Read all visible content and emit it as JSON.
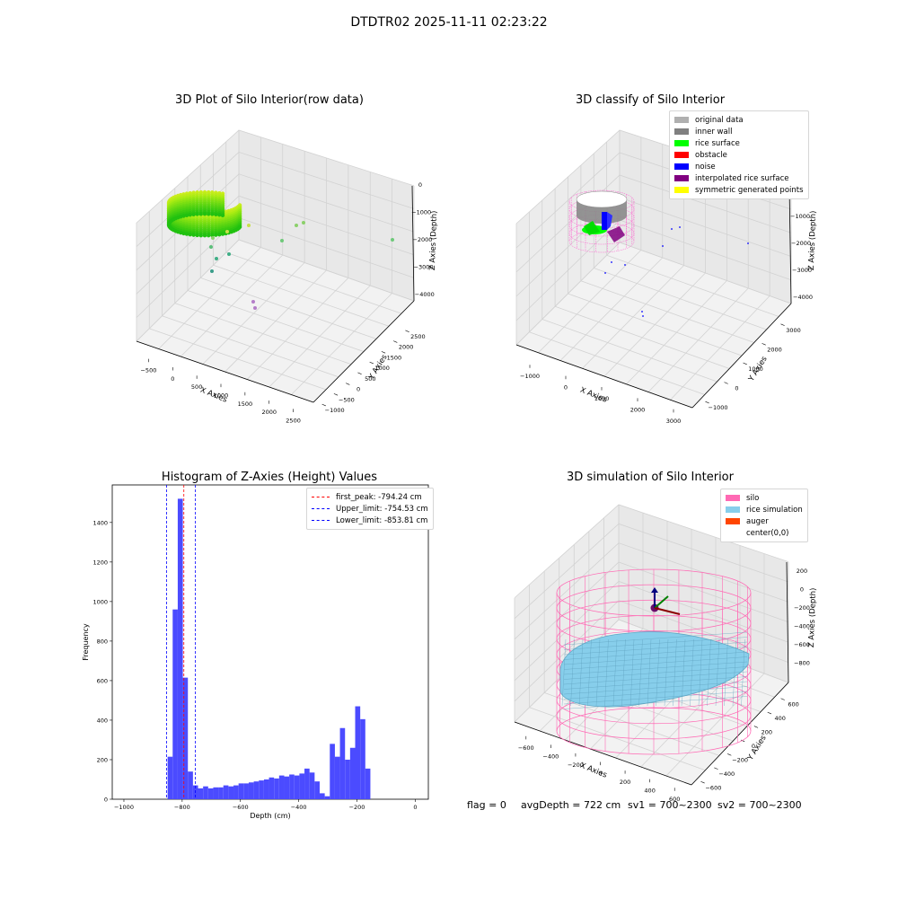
{
  "suptitle": "DTDTR02 2025-11-11 02:23:22",
  "footer": {
    "flag": "flag = 0",
    "avg": "avgDepth = 722 cm",
    "sv1": "sv1 = 700~2300",
    "sv2": "sv2 = 700~2300"
  },
  "colors": {
    "original_data": "#b0b0b0",
    "inner_wall": "#808080",
    "rice_surface": "#00ff00",
    "obstacle": "#ff0000",
    "noise": "#0000ff",
    "interpolated": "#800080",
    "symmetric": "#ffff00",
    "silo": "#ff69b4",
    "rice_sim": "#87ceeb",
    "auger": "#ff4500",
    "hist_bar": "#4b4bff",
    "first_peak": "#ff0000",
    "limits": "#0000ff"
  },
  "chart_data": [
    {
      "type": "scatter",
      "title": "3D Plot of Silo Interior(row data)",
      "xlabel": "X Axies",
      "ylabel": "Y Axies",
      "zlabel": "Z Axies (Depth)",
      "x_ticks": [
        "−500",
        "0",
        "500",
        "1000",
        "1500",
        "2000",
        "2500"
      ],
      "y_ticks": [
        "−1000",
        "−500",
        "0",
        "500",
        "1000",
        "1500",
        "2000",
        "2500"
      ],
      "z_ticks": [
        "0",
        "−1000",
        "−2000",
        "−3000",
        "−4000"
      ],
      "outliers": [
        {
          "x": 1200,
          "y": 1600,
          "z": -1200
        },
        {
          "x": 1600,
          "y": 2400,
          "z": -1700
        },
        {
          "x": 900,
          "y": 1000,
          "z": -1400
        },
        {
          "x": 450,
          "y": 200,
          "z": -1500
        },
        {
          "x": 220,
          "y": -350,
          "z": -2600
        },
        {
          "x": 300,
          "y": -100,
          "z": -2300
        },
        {
          "x": 500,
          "y": 400,
          "z": -3800
        },
        {
          "x": 480,
          "y": 380,
          "z": -4000
        }
      ]
    },
    {
      "type": "scatter",
      "title": "3D classify of Silo Interior",
      "xlabel": "X Axies",
      "ylabel": "Y Axies",
      "zlabel": "Z Axies (Depth)",
      "x_ticks": [
        "−1000",
        "0",
        "1000",
        "2000",
        "3000"
      ],
      "y_ticks": [
        "−1000",
        "0",
        "1000",
        "2000",
        "3000"
      ],
      "z_ticks": [
        "0",
        "−1000",
        "−2000",
        "−3000",
        "−4000"
      ],
      "legend": [
        "original data",
        "inner wall",
        "rice surface",
        "obstacle",
        "noise",
        "interpolated rice surface",
        "symmetric generated points"
      ]
    },
    {
      "type": "bar",
      "title": "Histogram of Z-Axies (Height) Values",
      "xlabel": "Depth (cm)",
      "ylabel": "Frequency",
      "xlim": [
        -1040,
        45
      ],
      "ylim": [
        0,
        1590
      ],
      "x_ticks": [
        -1000,
        -800,
        -600,
        -400,
        -200,
        0
      ],
      "x_tick_labels": [
        "−1000",
        "−800",
        "−600",
        "−400",
        "−200",
        "0"
      ],
      "y_ticks": [
        0,
        200,
        400,
        600,
        800,
        1000,
        1200,
        1400
      ],
      "bin_start": -850,
      "bin_width": 17.4,
      "values": [
        215,
        960,
        1520,
        615,
        140,
        70,
        55,
        65,
        55,
        60,
        60,
        70,
        65,
        70,
        80,
        80,
        85,
        90,
        95,
        100,
        110,
        105,
        120,
        115,
        125,
        120,
        130,
        155,
        135,
        90,
        30,
        15,
        280,
        215,
        360,
        200,
        260,
        470,
        405,
        155
      ],
      "lines": [
        {
          "label": "first_peak: -794.24 cm",
          "x": -794.24,
          "style": "first_peak"
        },
        {
          "label": "Upper_limit: -754.53 cm",
          "x": -754.53,
          "style": "limits"
        },
        {
          "label": "Lower_limit: -853.81 cm",
          "x": -853.81,
          "style": "limits"
        }
      ]
    },
    {
      "type": "scatter",
      "title": "3D simulation of Silo Interior",
      "xlabel": "X Axies",
      "ylabel": "Y Axies",
      "zlabel": "Z Axies (Depth)",
      "x_ticks": [
        "−600",
        "−400",
        "−200",
        "0",
        "200",
        "400",
        "600"
      ],
      "y_ticks": [
        "−600",
        "−400",
        "−200",
        "0",
        "200",
        "400",
        "600"
      ],
      "z_ticks": [
        "200",
        "0",
        "−200",
        "−400",
        "−600",
        "−800"
      ],
      "legend": [
        "silo",
        "rice simulation",
        "auger",
        "center(0,0)"
      ]
    }
  ]
}
